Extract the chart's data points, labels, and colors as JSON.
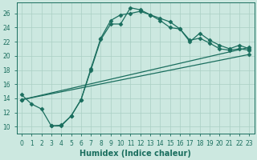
{
  "xlabel": "Humidex (Indice chaleur)",
  "xlim": [
    -0.5,
    23.5
  ],
  "ylim": [
    9.0,
    27.5
  ],
  "xticks": [
    0,
    1,
    2,
    3,
    4,
    5,
    6,
    7,
    8,
    9,
    10,
    11,
    12,
    13,
    14,
    15,
    16,
    17,
    18,
    19,
    20,
    21,
    22,
    23
  ],
  "yticks": [
    10,
    12,
    14,
    16,
    18,
    20,
    22,
    24,
    26
  ],
  "background_color": "#cce8e0",
  "line_color": "#1a6e5e",
  "grid_color": "#aacfc4",
  "line1_x": [
    0,
    1,
    2,
    3,
    4,
    5,
    6,
    7,
    8,
    9,
    10,
    11,
    12,
    13,
    14,
    15,
    16,
    17,
    18,
    19,
    20,
    21,
    22,
    23
  ],
  "line1_y": [
    14.5,
    13.2,
    12.5,
    10.1,
    10.2,
    11.5,
    13.8,
    18.0,
    22.3,
    24.5,
    24.5,
    26.8,
    26.5,
    25.8,
    25.3,
    24.8,
    23.8,
    22.0,
    23.2,
    22.2,
    21.5,
    21.0,
    21.5,
    21.0
  ],
  "line2_x": [
    3,
    4,
    5,
    6,
    7,
    8,
    9,
    10,
    11,
    12,
    13,
    14,
    15,
    16,
    17,
    18,
    19,
    20,
    21,
    22,
    23
  ],
  "line2_y": [
    10.1,
    10.1,
    11.5,
    13.8,
    18.2,
    22.5,
    25.0,
    25.8,
    26.0,
    26.3,
    25.8,
    25.0,
    24.0,
    23.8,
    22.2,
    22.5,
    21.8,
    21.0,
    20.8,
    21.0,
    20.8
  ],
  "line3_x": [
    0,
    23
  ],
  "line3_y": [
    13.8,
    21.2
  ],
  "line4_x": [
    0,
    23
  ],
  "line4_y": [
    13.8,
    20.2
  ],
  "marker": "D",
  "markersize": 2.5,
  "linewidth": 0.9,
  "tick_fontsize": 5.5,
  "label_fontsize": 7.0
}
